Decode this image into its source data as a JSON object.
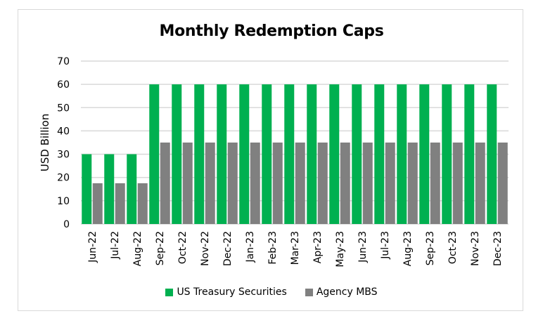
{
  "chart_data": {
    "type": "bar",
    "title": "Monthly Redemption Caps",
    "xlabel": "",
    "ylabel": "USD Billion",
    "ylim": [
      0,
      70
    ],
    "yticks": [
      0,
      10,
      20,
      30,
      40,
      50,
      60,
      70
    ],
    "grid": true,
    "legend_position": "bottom",
    "categories": [
      "Jun-22",
      "Jul-22",
      "Aug-22",
      "Sep-22",
      "Oct-22",
      "Nov-22",
      "Dec-22",
      "Jan-23",
      "Feb-23",
      "Mar-23",
      "Apr-23",
      "May-23",
      "Jun-23",
      "Jul-23",
      "Aug-23",
      "Sep-23",
      "Oct-23",
      "Nov-23",
      "Dec-23"
    ],
    "series": [
      {
        "name": "US Treasury Securities",
        "color": "#00b050",
        "values": [
          30,
          30,
          30,
          60,
          60,
          60,
          60,
          60,
          60,
          60,
          60,
          60,
          60,
          60,
          60,
          60,
          60,
          60,
          60
        ]
      },
      {
        "name": "Agency MBS",
        "color": "#808080",
        "values": [
          17.5,
          17.5,
          17.5,
          35,
          35,
          35,
          35,
          35,
          35,
          35,
          35,
          35,
          35,
          35,
          35,
          35,
          35,
          35,
          35
        ]
      }
    ]
  },
  "colors": {
    "gridline": "#d9d9d9",
    "border": "#d9d9d9"
  }
}
